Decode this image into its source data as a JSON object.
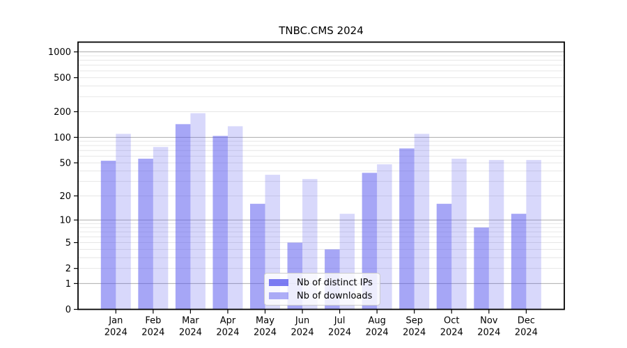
{
  "title": "TNBC.CMS 2024",
  "chart_data": {
    "type": "bar",
    "title": "TNBC.CMS 2024",
    "categories": [
      "Jan 2024",
      "Feb 2024",
      "Mar 2024",
      "Apr 2024",
      "May 2024",
      "Jun 2024",
      "Jul 2024",
      "Aug 2024",
      "Sep 2024",
      "Oct 2024",
      "Nov 2024",
      "Dec 2024"
    ],
    "series": [
      {
        "name": "Nb of distinct IPs",
        "color": "#5555ee",
        "alpha": 0.52,
        "values": [
          53,
          56,
          143,
          104,
          16,
          5,
          4,
          38,
          74,
          16,
          8,
          12
        ]
      },
      {
        "name": "Nb of downloads",
        "color": "#5555ee",
        "alpha": 0.23,
        "values": [
          110,
          77,
          192,
          135,
          36,
          32,
          12,
          48,
          110,
          56,
          54,
          54
        ]
      }
    ],
    "xlabel": "",
    "ylabel": "",
    "yscale": "log1p",
    "ylim": [
      0,
      1300
    ],
    "yticks": [
      1000,
      500,
      200,
      100,
      50,
      20,
      10,
      5,
      2,
      1,
      0
    ],
    "grid": true,
    "major_gridlines": [
      1,
      10,
      100,
      1000
    ],
    "minor_gridlines": [
      2,
      3,
      4,
      5,
      6,
      7,
      8,
      9,
      20,
      30,
      40,
      50,
      60,
      70,
      80,
      90,
      200,
      300,
      400,
      500,
      600,
      700,
      800,
      900
    ],
    "grid_major_color": "#ababab",
    "grid_minor_color": "#e6e6e6",
    "axis_color": "#000000",
    "legend_position": "lower center"
  },
  "legend": {
    "items": [
      {
        "label": "Nb of distinct IPs"
      },
      {
        "label": "Nb of downloads"
      }
    ]
  }
}
